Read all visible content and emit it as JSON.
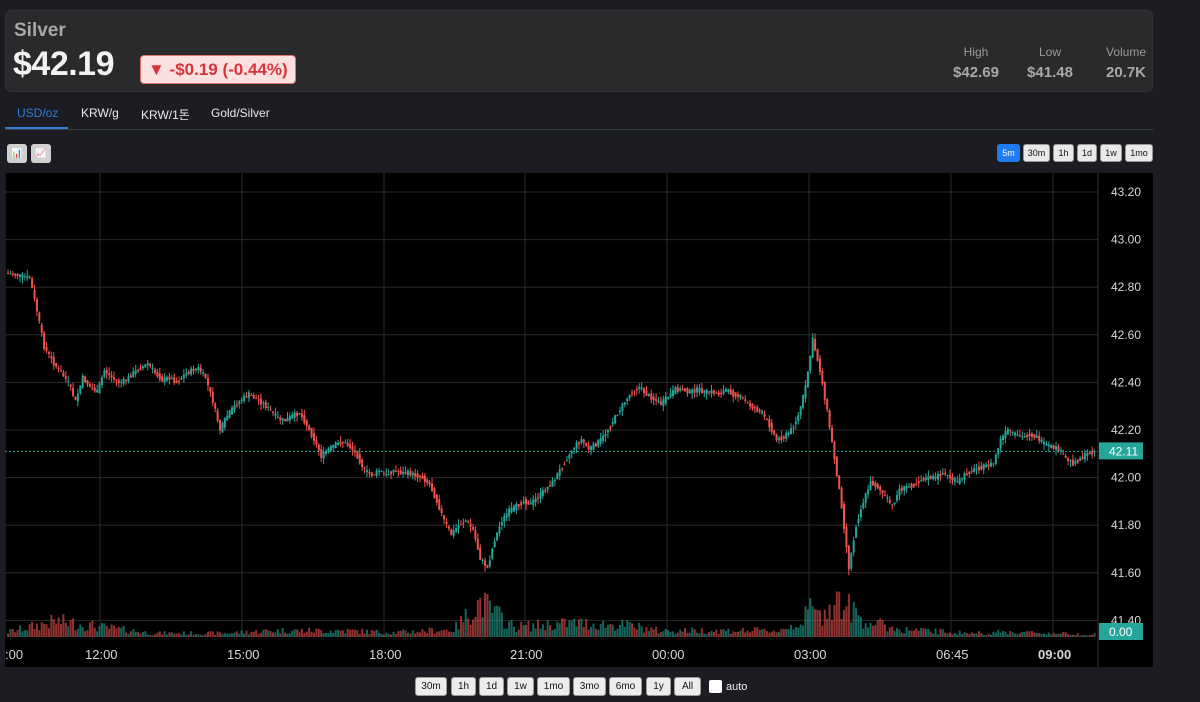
{
  "header": {
    "title": "Silver",
    "price": "$42.19",
    "change": "▼ -$0.19 (-0.44%)",
    "stats": [
      {
        "label": "High",
        "value": "$42.69"
      },
      {
        "label": "Low",
        "value": "$41.48"
      },
      {
        "label": "Volume",
        "value": "20.7K"
      }
    ]
  },
  "tabs": [
    "USD/oz",
    "KRW/g",
    "KRW/1돈",
    "Gold/Silver"
  ],
  "tools": [
    {
      "icon": "bar-chart-icon",
      "glyph": "📊"
    },
    {
      "icon": "line-chart-icon",
      "glyph": "📈"
    }
  ],
  "intervals": [
    "5m",
    "30m",
    "1h",
    "1d",
    "1w",
    "1mo"
  ],
  "active_interval": "5m",
  "ranges": [
    "30m",
    "1h",
    "1d",
    "1w",
    "1mo",
    "3mo",
    "6mo",
    "1y",
    "All"
  ],
  "auto_label": "auto",
  "colors": {
    "up": "#26a69a",
    "down": "#ef5350",
    "accent": "#1e7cf0",
    "last_price_bg": "#26a69a"
  },
  "chart_data": {
    "type": "candlestick",
    "y_ticks": [
      "43.20",
      "43.00",
      "42.80",
      "42.60",
      "42.40",
      "42.20",
      "42.00",
      "41.80",
      "41.60",
      "41.40"
    ],
    "ylim": [
      41.33,
      43.28
    ],
    "x_ticks": [
      ":00",
      "12:00",
      "15:00",
      "18:00",
      "21:00",
      "00:00",
      "03:00",
      "06:45",
      "09:00"
    ],
    "last_price_label": "42.11",
    "last_price": 42.11,
    "volume_label": "0.00",
    "price_path": [
      [
        0,
        42.86
      ],
      [
        5,
        42.85
      ],
      [
        10,
        42.84
      ],
      [
        13,
        42.7
      ],
      [
        16,
        42.55
      ],
      [
        20,
        42.48
      ],
      [
        23,
        42.44
      ],
      [
        26,
        42.4
      ],
      [
        29,
        42.32
      ],
      [
        32,
        42.42
      ],
      [
        35,
        42.38
      ],
      [
        38,
        42.36
      ],
      [
        41,
        42.45
      ],
      [
        44,
        42.42
      ],
      [
        47,
        42.4
      ],
      [
        50,
        42.41
      ],
      [
        53,
        42.44
      ],
      [
        56,
        42.46
      ],
      [
        59,
        42.48
      ],
      [
        62,
        42.44
      ],
      [
        65,
        42.41
      ],
      [
        68,
        42.42
      ],
      [
        71,
        42.4
      ],
      [
        74,
        42.43
      ],
      [
        77,
        42.45
      ],
      [
        80,
        42.46
      ],
      [
        83,
        42.42
      ],
      [
        86,
        42.32
      ],
      [
        89,
        42.2
      ],
      [
        92,
        42.26
      ],
      [
        95,
        42.3
      ],
      [
        98,
        42.33
      ],
      [
        101,
        42.35
      ],
      [
        104,
        42.33
      ],
      [
        107,
        42.31
      ],
      [
        110,
        42.28
      ],
      [
        113,
        42.25
      ],
      [
        116,
        42.24
      ],
      [
        119,
        42.26
      ],
      [
        122,
        42.27
      ],
      [
        125,
        42.22
      ],
      [
        128,
        42.16
      ],
      [
        131,
        42.09
      ],
      [
        134,
        42.12
      ],
      [
        137,
        42.14
      ],
      [
        140,
        42.15
      ],
      [
        143,
        42.13
      ],
      [
        146,
        42.09
      ],
      [
        149,
        42.03
      ],
      [
        152,
        42.01
      ],
      [
        155,
        42.03
      ],
      [
        158,
        42.01
      ],
      [
        161,
        42.03
      ],
      [
        164,
        42.02
      ],
      [
        167,
        42.02
      ],
      [
        170,
        42.01
      ],
      [
        173,
        42.0
      ],
      [
        176,
        41.97
      ],
      [
        179,
        41.9
      ],
      [
        182,
        41.82
      ],
      [
        185,
        41.76
      ],
      [
        188,
        41.8
      ],
      [
        191,
        41.82
      ],
      [
        194,
        41.78
      ],
      [
        197,
        41.66
      ],
      [
        200,
        41.62
      ],
      [
        203,
        41.74
      ],
      [
        206,
        41.82
      ],
      [
        209,
        41.86
      ],
      [
        212,
        41.88
      ],
      [
        215,
        41.9
      ],
      [
        218,
        41.89
      ],
      [
        221,
        41.92
      ],
      [
        224,
        41.95
      ],
      [
        227,
        41.98
      ],
      [
        230,
        42.03
      ],
      [
        233,
        42.08
      ],
      [
        236,
        42.13
      ],
      [
        239,
        42.16
      ],
      [
        242,
        42.12
      ],
      [
        245,
        42.14
      ],
      [
        248,
        42.17
      ],
      [
        251,
        42.22
      ],
      [
        254,
        42.27
      ],
      [
        257,
        42.32
      ],
      [
        260,
        42.36
      ],
      [
        263,
        42.38
      ],
      [
        266,
        42.35
      ],
      [
        269,
        42.33
      ],
      [
        272,
        42.31
      ],
      [
        275,
        42.34
      ],
      [
        278,
        42.37
      ],
      [
        281,
        42.37
      ],
      [
        284,
        42.36
      ],
      [
        287,
        42.37
      ],
      [
        290,
        42.36
      ],
      [
        293,
        42.36
      ],
      [
        296,
        42.35
      ],
      [
        299,
        42.37
      ],
      [
        302,
        42.35
      ],
      [
        305,
        42.34
      ],
      [
        308,
        42.31
      ],
      [
        311,
        42.29
      ],
      [
        314,
        42.27
      ],
      [
        317,
        42.22
      ],
      [
        320,
        42.16
      ],
      [
        323,
        42.17
      ],
      [
        326,
        42.2
      ],
      [
        329,
        42.26
      ],
      [
        332,
        42.38
      ],
      [
        335,
        42.58
      ],
      [
        338,
        42.45
      ],
      [
        341,
        42.28
      ],
      [
        344,
        42.08
      ],
      [
        347,
        41.88
      ],
      [
        350,
        41.62
      ],
      [
        353,
        41.8
      ],
      [
        356,
        41.9
      ],
      [
        359,
        41.98
      ],
      [
        362,
        41.96
      ],
      [
        365,
        41.92
      ],
      [
        368,
        41.88
      ],
      [
        371,
        41.95
      ],
      [
        374,
        41.96
      ],
      [
        377,
        41.97
      ],
      [
        380,
        41.99
      ],
      [
        383,
        42.0
      ],
      [
        386,
        42.0
      ],
      [
        389,
        42.02
      ],
      [
        392,
        42.0
      ],
      [
        395,
        41.98
      ],
      [
        398,
        42.01
      ],
      [
        401,
        42.03
      ],
      [
        404,
        42.04
      ],
      [
        407,
        42.05
      ],
      [
        410,
        42.06
      ],
      [
        413,
        42.16
      ],
      [
        416,
        42.2
      ],
      [
        419,
        42.18
      ],
      [
        422,
        42.17
      ],
      [
        425,
        42.18
      ],
      [
        428,
        42.17
      ],
      [
        431,
        42.14
      ],
      [
        434,
        42.13
      ],
      [
        437,
        42.12
      ],
      [
        440,
        42.08
      ],
      [
        443,
        42.06
      ],
      [
        446,
        42.08
      ],
      [
        449,
        42.1
      ],
      [
        452,
        42.11
      ]
    ],
    "volume_profile": [
      [
        0,
        0.08
      ],
      [
        20,
        0.25
      ],
      [
        40,
        0.15
      ],
      [
        60,
        0.06
      ],
      [
        90,
        0.06
      ],
      [
        110,
        0.1
      ],
      [
        140,
        0.1
      ],
      [
        160,
        0.07
      ],
      [
        185,
        0.12
      ],
      [
        196,
        0.55
      ],
      [
        210,
        0.16
      ],
      [
        235,
        0.22
      ],
      [
        258,
        0.18
      ],
      [
        270,
        0.1
      ],
      [
        300,
        0.1
      ],
      [
        320,
        0.1
      ],
      [
        330,
        0.25
      ],
      [
        333,
        0.46
      ],
      [
        337,
        0.32
      ],
      [
        343,
        0.6
      ],
      [
        349,
        0.45
      ],
      [
        356,
        0.25
      ],
      [
        370,
        0.12
      ],
      [
        400,
        0.06
      ],
      [
        415,
        0.08
      ],
      [
        452,
        0.04
      ]
    ]
  }
}
